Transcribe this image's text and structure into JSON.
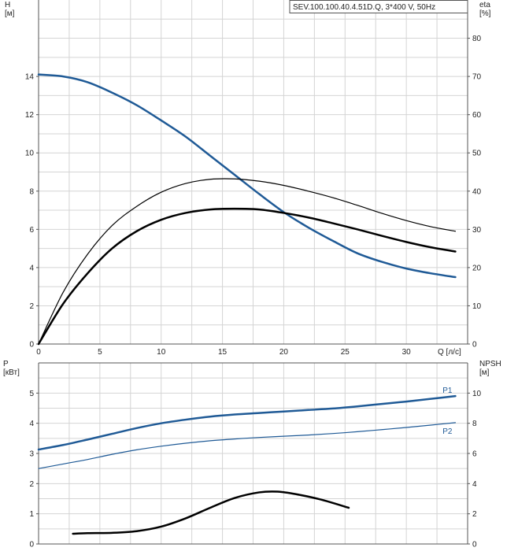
{
  "colors": {
    "blue": "#1f5a96",
    "black": "#000000",
    "grid": "#d4d4d4"
  },
  "chart_data": [
    {
      "type": "line",
      "title": "SEV.100.100.40.4.51D.Q, 3*400 V, 50Hz",
      "xlabel": "Q [л/с]",
      "ylabel": "H\n[м]",
      "y2label": "eta\n[%]",
      "xlim": [
        0,
        35
      ],
      "ylim": [
        0,
        18
      ],
      "y2lim": [
        0,
        90
      ],
      "xticks": [
        0,
        5,
        10,
        15,
        20,
        25,
        30
      ],
      "yticks": [
        0,
        2,
        4,
        6,
        8,
        10,
        12,
        14
      ],
      "y2ticks": [
        0,
        10,
        20,
        30,
        40,
        50,
        60,
        70,
        80
      ],
      "grid": true,
      "series": [
        {
          "axis": "left",
          "color": "#1f5a96",
          "width": 2.5,
          "x": [
            0,
            2,
            4,
            6,
            8,
            10,
            12,
            14,
            16,
            18,
            20,
            22,
            24,
            26,
            28,
            30,
            32,
            34
          ],
          "y": [
            14.1,
            14.0,
            13.7,
            13.15,
            12.5,
            11.7,
            10.85,
            9.85,
            8.85,
            7.85,
            6.9,
            6.1,
            5.4,
            4.75,
            4.3,
            3.95,
            3.7,
            3.5
          ]
        },
        {
          "axis": "right",
          "color": "#000000",
          "width": 1.2,
          "x": [
            0,
            2,
            4,
            6,
            8,
            10,
            12,
            14,
            16,
            18,
            20,
            22,
            24,
            26,
            28,
            30,
            32,
            34
          ],
          "y": [
            0,
            13.5,
            23.5,
            31,
            36,
            39.7,
            42,
            43.1,
            43.2,
            42.6,
            41.5,
            40,
            38.3,
            36.3,
            34.2,
            32.3,
            30.7,
            29.5
          ]
        },
        {
          "axis": "right",
          "color": "#000000",
          "width": 2.5,
          "x": [
            0,
            2,
            4,
            6,
            8,
            10,
            12,
            14,
            16,
            18,
            20,
            22,
            24,
            26,
            28,
            30,
            32,
            34
          ],
          "y": [
            0,
            10.5,
            18.5,
            25,
            29.5,
            32.5,
            34.3,
            35.2,
            35.4,
            35.2,
            34.3,
            33.1,
            31.6,
            30,
            28.3,
            26.7,
            25.3,
            24.2
          ]
        }
      ]
    },
    {
      "type": "line",
      "ylabel": "P\n[кВт]",
      "y2label": "NPSH\n[м]",
      "xlim": [
        0,
        35
      ],
      "ylim": [
        0,
        6
      ],
      "y2lim": [
        0,
        12
      ],
      "yticks": [
        0,
        1,
        2,
        3,
        4,
        5
      ],
      "y2ticks": [
        0,
        2,
        4,
        6,
        8,
        10
      ],
      "grid": true,
      "series": [
        {
          "name": "P1",
          "axis": "left",
          "color": "#1f5a96",
          "width": 2.5,
          "x": [
            0,
            2,
            4,
            6,
            8,
            10,
            12,
            14,
            16,
            18,
            20,
            22,
            24,
            26,
            28,
            30,
            32,
            34
          ],
          "y": [
            3.13,
            3.28,
            3.46,
            3.65,
            3.84,
            4.0,
            4.12,
            4.22,
            4.29,
            4.34,
            4.39,
            4.44,
            4.49,
            4.56,
            4.64,
            4.72,
            4.81,
            4.9
          ]
        },
        {
          "name": "P2",
          "axis": "left",
          "color": "#1f5a96",
          "width": 1.2,
          "x": [
            0,
            2,
            4,
            6,
            8,
            10,
            12,
            14,
            16,
            18,
            20,
            22,
            24,
            26,
            28,
            30,
            32,
            34
          ],
          "y": [
            2.5,
            2.65,
            2.8,
            2.97,
            3.12,
            3.24,
            3.34,
            3.42,
            3.48,
            3.53,
            3.57,
            3.61,
            3.66,
            3.72,
            3.79,
            3.86,
            3.94,
            4.02
          ]
        },
        {
          "axis": "right",
          "color": "#000000",
          "width": 2.5,
          "x": [
            2.8,
            4,
            6,
            8,
            10,
            12,
            14,
            16,
            18,
            19.5,
            21,
            23,
            25.3
          ],
          "y": [
            0.68,
            0.72,
            0.74,
            0.85,
            1.15,
            1.7,
            2.4,
            3.05,
            3.42,
            3.47,
            3.3,
            2.95,
            2.4
          ]
        }
      ]
    }
  ]
}
